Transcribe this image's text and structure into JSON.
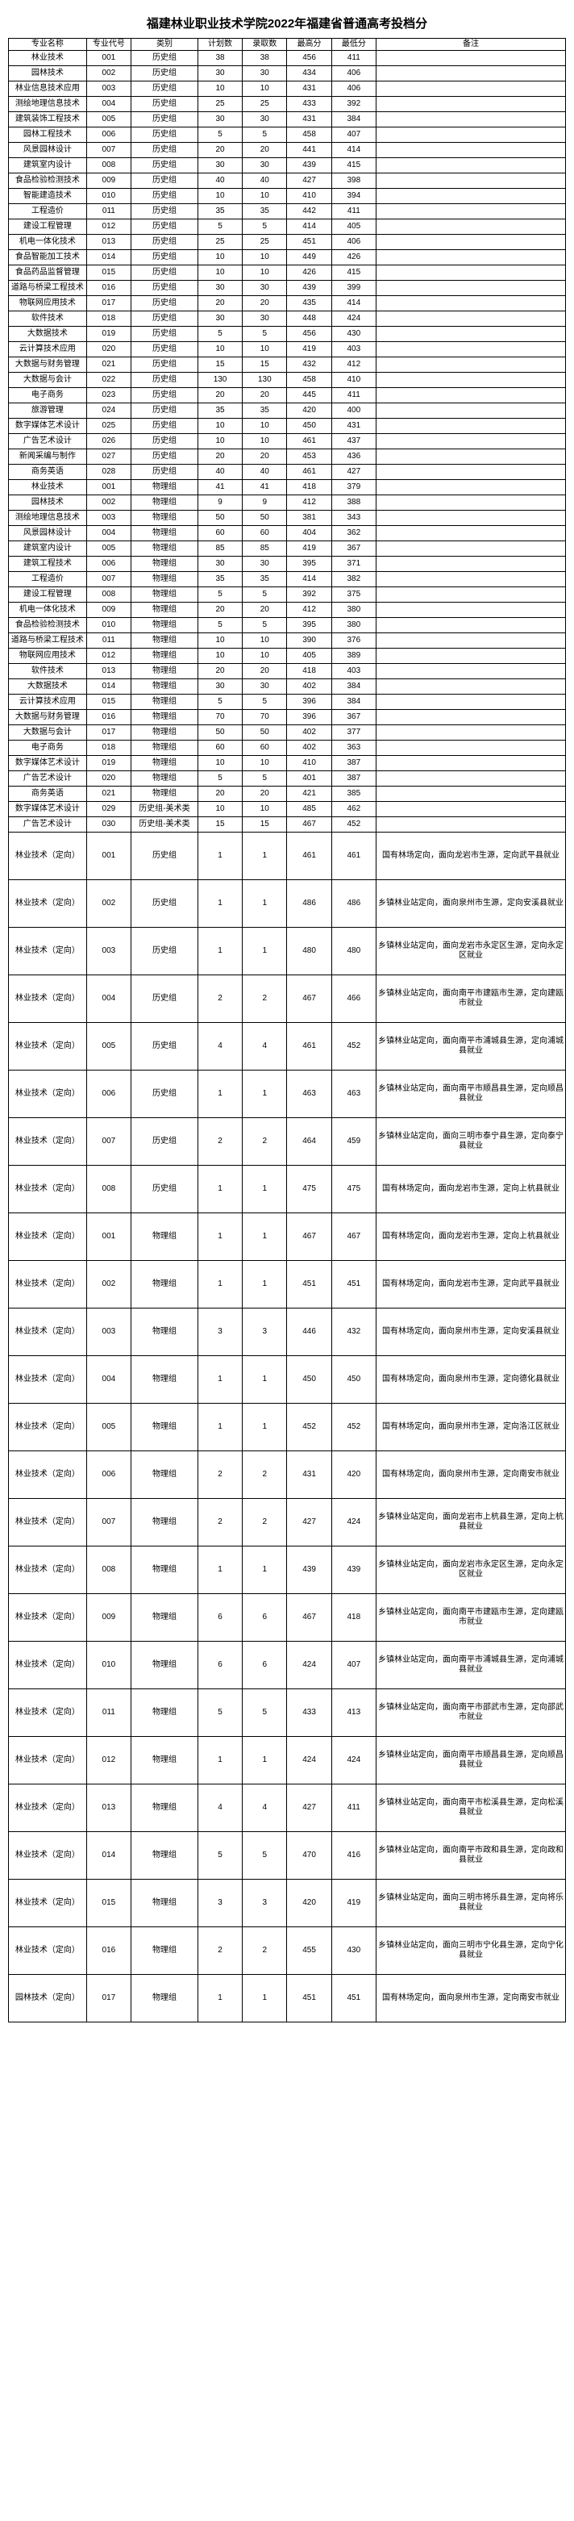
{
  "title": "福建林业职业技术学院2022年福建省普通高考投档分",
  "headers": [
    "专业名称",
    "专业代号",
    "类别",
    "计划数",
    "录取数",
    "最高分",
    "最低分",
    "备注"
  ],
  "rows": [
    {
      "c": [
        "林业技术",
        "001",
        "历史组",
        "38",
        "38",
        "456",
        "411",
        ""
      ],
      "t": false
    },
    {
      "c": [
        "园林技术",
        "002",
        "历史组",
        "30",
        "30",
        "434",
        "406",
        ""
      ],
      "t": false
    },
    {
      "c": [
        "林业信息技术应用",
        "003",
        "历史组",
        "10",
        "10",
        "431",
        "406",
        ""
      ],
      "t": false
    },
    {
      "c": [
        "测绘地理信息技术",
        "004",
        "历史组",
        "25",
        "25",
        "433",
        "392",
        ""
      ],
      "t": false
    },
    {
      "c": [
        "建筑装饰工程技术",
        "005",
        "历史组",
        "30",
        "30",
        "431",
        "384",
        ""
      ],
      "t": false
    },
    {
      "c": [
        "园林工程技术",
        "006",
        "历史组",
        "5",
        "5",
        "458",
        "407",
        ""
      ],
      "t": false
    },
    {
      "c": [
        "风景园林设计",
        "007",
        "历史组",
        "20",
        "20",
        "441",
        "414",
        ""
      ],
      "t": false
    },
    {
      "c": [
        "建筑室内设计",
        "008",
        "历史组",
        "30",
        "30",
        "439",
        "415",
        ""
      ],
      "t": false
    },
    {
      "c": [
        "食品检验检测技术",
        "009",
        "历史组",
        "40",
        "40",
        "427",
        "398",
        ""
      ],
      "t": false
    },
    {
      "c": [
        "智能建造技术",
        "010",
        "历史组",
        "10",
        "10",
        "410",
        "394",
        ""
      ],
      "t": false
    },
    {
      "c": [
        "工程造价",
        "011",
        "历史组",
        "35",
        "35",
        "442",
        "411",
        ""
      ],
      "t": false
    },
    {
      "c": [
        "建设工程管理",
        "012",
        "历史组",
        "5",
        "5",
        "414",
        "405",
        ""
      ],
      "t": false
    },
    {
      "c": [
        "机电一体化技术",
        "013",
        "历史组",
        "25",
        "25",
        "451",
        "406",
        ""
      ],
      "t": false
    },
    {
      "c": [
        "食品智能加工技术",
        "014",
        "历史组",
        "10",
        "10",
        "449",
        "426",
        ""
      ],
      "t": false
    },
    {
      "c": [
        "食品药品监督管理",
        "015",
        "历史组",
        "10",
        "10",
        "426",
        "415",
        ""
      ],
      "t": false
    },
    {
      "c": [
        "道路与桥梁工程技术",
        "016",
        "历史组",
        "30",
        "30",
        "439",
        "399",
        ""
      ],
      "t": false
    },
    {
      "c": [
        "物联网应用技术",
        "017",
        "历史组",
        "20",
        "20",
        "435",
        "414",
        ""
      ],
      "t": false
    },
    {
      "c": [
        "软件技术",
        "018",
        "历史组",
        "30",
        "30",
        "448",
        "424",
        ""
      ],
      "t": false
    },
    {
      "c": [
        "大数据技术",
        "019",
        "历史组",
        "5",
        "5",
        "456",
        "430",
        ""
      ],
      "t": false
    },
    {
      "c": [
        "云计算技术应用",
        "020",
        "历史组",
        "10",
        "10",
        "419",
        "403",
        ""
      ],
      "t": false
    },
    {
      "c": [
        "大数据与财务管理",
        "021",
        "历史组",
        "15",
        "15",
        "432",
        "412",
        ""
      ],
      "t": false
    },
    {
      "c": [
        "大数据与会计",
        "022",
        "历史组",
        "130",
        "130",
        "458",
        "410",
        ""
      ],
      "t": false
    },
    {
      "c": [
        "电子商务",
        "023",
        "历史组",
        "20",
        "20",
        "445",
        "411",
        ""
      ],
      "t": false
    },
    {
      "c": [
        "旅游管理",
        "024",
        "历史组",
        "35",
        "35",
        "420",
        "400",
        ""
      ],
      "t": false
    },
    {
      "c": [
        "数字媒体艺术设计",
        "025",
        "历史组",
        "10",
        "10",
        "450",
        "431",
        ""
      ],
      "t": false
    },
    {
      "c": [
        "广告艺术设计",
        "026",
        "历史组",
        "10",
        "10",
        "461",
        "437",
        ""
      ],
      "t": false
    },
    {
      "c": [
        "新闻采编与制作",
        "027",
        "历史组",
        "20",
        "20",
        "453",
        "436",
        ""
      ],
      "t": false
    },
    {
      "c": [
        "商务英语",
        "028",
        "历史组",
        "40",
        "40",
        "461",
        "427",
        ""
      ],
      "t": false
    },
    {
      "c": [
        "林业技术",
        "001",
        "物理组",
        "41",
        "41",
        "418",
        "379",
        ""
      ],
      "t": false
    },
    {
      "c": [
        "园林技术",
        "002",
        "物理组",
        "9",
        "9",
        "412",
        "388",
        ""
      ],
      "t": false
    },
    {
      "c": [
        "测绘地理信息技术",
        "003",
        "物理组",
        "50",
        "50",
        "381",
        "343",
        ""
      ],
      "t": false
    },
    {
      "c": [
        "风景园林设计",
        "004",
        "物理组",
        "60",
        "60",
        "404",
        "362",
        ""
      ],
      "t": false
    },
    {
      "c": [
        "建筑室内设计",
        "005",
        "物理组",
        "85",
        "85",
        "419",
        "367",
        ""
      ],
      "t": false
    },
    {
      "c": [
        "建筑工程技术",
        "006",
        "物理组",
        "30",
        "30",
        "395",
        "371",
        ""
      ],
      "t": false
    },
    {
      "c": [
        "工程造价",
        "007",
        "物理组",
        "35",
        "35",
        "414",
        "382",
        ""
      ],
      "t": false
    },
    {
      "c": [
        "建设工程管理",
        "008",
        "物理组",
        "5",
        "5",
        "392",
        "375",
        ""
      ],
      "t": false
    },
    {
      "c": [
        "机电一体化技术",
        "009",
        "物理组",
        "20",
        "20",
        "412",
        "380",
        ""
      ],
      "t": false
    },
    {
      "c": [
        "食品检验检测技术",
        "010",
        "物理组",
        "5",
        "5",
        "395",
        "380",
        ""
      ],
      "t": false
    },
    {
      "c": [
        "道路与桥梁工程技术",
        "011",
        "物理组",
        "10",
        "10",
        "390",
        "376",
        ""
      ],
      "t": false
    },
    {
      "c": [
        "物联网应用技术",
        "012",
        "物理组",
        "10",
        "10",
        "405",
        "389",
        ""
      ],
      "t": false
    },
    {
      "c": [
        "软件技术",
        "013",
        "物理组",
        "20",
        "20",
        "418",
        "403",
        ""
      ],
      "t": false
    },
    {
      "c": [
        "大数据技术",
        "014",
        "物理组",
        "30",
        "30",
        "402",
        "384",
        ""
      ],
      "t": false
    },
    {
      "c": [
        "云计算技术应用",
        "015",
        "物理组",
        "5",
        "5",
        "396",
        "384",
        ""
      ],
      "t": false
    },
    {
      "c": [
        "大数据与财务管理",
        "016",
        "物理组",
        "70",
        "70",
        "396",
        "367",
        ""
      ],
      "t": false
    },
    {
      "c": [
        "大数据与会计",
        "017",
        "物理组",
        "50",
        "50",
        "402",
        "377",
        ""
      ],
      "t": false
    },
    {
      "c": [
        "电子商务",
        "018",
        "物理组",
        "60",
        "60",
        "402",
        "363",
        ""
      ],
      "t": false
    },
    {
      "c": [
        "数字媒体艺术设计",
        "019",
        "物理组",
        "10",
        "10",
        "410",
        "387",
        ""
      ],
      "t": false
    },
    {
      "c": [
        "广告艺术设计",
        "020",
        "物理组",
        "5",
        "5",
        "401",
        "387",
        ""
      ],
      "t": false
    },
    {
      "c": [
        "商务英语",
        "021",
        "物理组",
        "20",
        "20",
        "421",
        "385",
        ""
      ],
      "t": false
    },
    {
      "c": [
        "数字媒体艺术设计",
        "029",
        "历史组-美术类",
        "10",
        "10",
        "485",
        "462",
        ""
      ],
      "t": false
    },
    {
      "c": [
        "广告艺术设计",
        "030",
        "历史组-美术类",
        "15",
        "15",
        "467",
        "452",
        ""
      ],
      "t": false
    },
    {
      "c": [
        "林业技术（定向）",
        "001",
        "历史组",
        "1",
        "1",
        "461",
        "461",
        "国有林场定向，面向龙岩市生源，定向武平县就业"
      ],
      "t": true
    },
    {
      "c": [
        "林业技术（定向）",
        "002",
        "历史组",
        "1",
        "1",
        "486",
        "486",
        "乡镇林业站定向，面向泉州市生源，定向安溪县就业"
      ],
      "t": true
    },
    {
      "c": [
        "林业技术（定向）",
        "003",
        "历史组",
        "1",
        "1",
        "480",
        "480",
        "乡镇林业站定向，面向龙岩市永定区生源，定向永定区就业"
      ],
      "t": true
    },
    {
      "c": [
        "林业技术（定向）",
        "004",
        "历史组",
        "2",
        "2",
        "467",
        "466",
        "乡镇林业站定向，面向南平市建瓯市生源，定向建瓯市就业"
      ],
      "t": true
    },
    {
      "c": [
        "林业技术（定向）",
        "005",
        "历史组",
        "4",
        "4",
        "461",
        "452",
        "乡镇林业站定向，面向南平市浦城县生源，定向浦城县就业"
      ],
      "t": true
    },
    {
      "c": [
        "林业技术（定向）",
        "006",
        "历史组",
        "1",
        "1",
        "463",
        "463",
        "乡镇林业站定向，面向南平市顺昌县生源，定向顺昌县就业"
      ],
      "t": true
    },
    {
      "c": [
        "林业技术（定向）",
        "007",
        "历史组",
        "2",
        "2",
        "464",
        "459",
        "乡镇林业站定向，面向三明市泰宁县生源，定向泰宁县就业"
      ],
      "t": true
    },
    {
      "c": [
        "林业技术（定向）",
        "008",
        "历史组",
        "1",
        "1",
        "475",
        "475",
        "国有林场定向，面向龙岩市生源，定向上杭县就业"
      ],
      "t": true
    },
    {
      "c": [
        "林业技术（定向）",
        "001",
        "物理组",
        "1",
        "1",
        "467",
        "467",
        "国有林场定向，面向龙岩市生源，定向上杭县就业"
      ],
      "t": true
    },
    {
      "c": [
        "林业技术（定向）",
        "002",
        "物理组",
        "1",
        "1",
        "451",
        "451",
        "国有林场定向，面向龙岩市生源，定向武平县就业"
      ],
      "t": true
    },
    {
      "c": [
        "林业技术（定向）",
        "003",
        "物理组",
        "3",
        "3",
        "446",
        "432",
        "国有林场定向，面向泉州市生源，定向安溪县就业"
      ],
      "t": true
    },
    {
      "c": [
        "林业技术（定向）",
        "004",
        "物理组",
        "1",
        "1",
        "450",
        "450",
        "国有林场定向，面向泉州市生源，定向德化县就业"
      ],
      "t": true
    },
    {
      "c": [
        "林业技术（定向）",
        "005",
        "物理组",
        "1",
        "1",
        "452",
        "452",
        "国有林场定向，面向泉州市生源，定向洛江区就业"
      ],
      "t": true
    },
    {
      "c": [
        "林业技术（定向）",
        "006",
        "物理组",
        "2",
        "2",
        "431",
        "420",
        "国有林场定向，面向泉州市生源，定向南安市就业"
      ],
      "t": true
    },
    {
      "c": [
        "林业技术（定向）",
        "007",
        "物理组",
        "2",
        "2",
        "427",
        "424",
        "乡镇林业站定向，面向龙岩市上杭县生源，定向上杭县就业"
      ],
      "t": true
    },
    {
      "c": [
        "林业技术（定向）",
        "008",
        "物理组",
        "1",
        "1",
        "439",
        "439",
        "乡镇林业站定向，面向龙岩市永定区生源，定向永定区就业"
      ],
      "t": true
    },
    {
      "c": [
        "林业技术（定向）",
        "009",
        "物理组",
        "6",
        "6",
        "467",
        "418",
        "乡镇林业站定向，面向南平市建瓯市生源，定向建瓯市就业"
      ],
      "t": true
    },
    {
      "c": [
        "林业技术（定向）",
        "010",
        "物理组",
        "6",
        "6",
        "424",
        "407",
        "乡镇林业站定向，面向南平市浦城县生源，定向浦城县就业"
      ],
      "t": true
    },
    {
      "c": [
        "林业技术（定向）",
        "011",
        "物理组",
        "5",
        "5",
        "433",
        "413",
        "乡镇林业站定向，面向南平市邵武市生源，定向邵武市就业"
      ],
      "t": true
    },
    {
      "c": [
        "林业技术（定向）",
        "012",
        "物理组",
        "1",
        "1",
        "424",
        "424",
        "乡镇林业站定向，面向南平市顺昌县生源，定向顺昌县就业"
      ],
      "t": true
    },
    {
      "c": [
        "林业技术（定向）",
        "013",
        "物理组",
        "4",
        "4",
        "427",
        "411",
        "乡镇林业站定向，面向南平市松溪县生源，定向松溪县就业"
      ],
      "t": true
    },
    {
      "c": [
        "林业技术（定向）",
        "014",
        "物理组",
        "5",
        "5",
        "470",
        "416",
        "乡镇林业站定向，面向南平市政和县生源，定向政和县就业"
      ],
      "t": true
    },
    {
      "c": [
        "林业技术（定向）",
        "015",
        "物理组",
        "3",
        "3",
        "420",
        "419",
        "乡镇林业站定向，面向三明市将乐县生源，定向将乐县就业"
      ],
      "t": true
    },
    {
      "c": [
        "林业技术（定向）",
        "016",
        "物理组",
        "2",
        "2",
        "455",
        "430",
        "乡镇林业站定向，面向三明市宁化县生源，定向宁化县就业"
      ],
      "t": true
    },
    {
      "c": [
        "园林技术（定向）",
        "017",
        "物理组",
        "1",
        "1",
        "451",
        "451",
        "国有林场定向，面向泉州市生源，定向南安市就业"
      ],
      "t": true
    }
  ]
}
